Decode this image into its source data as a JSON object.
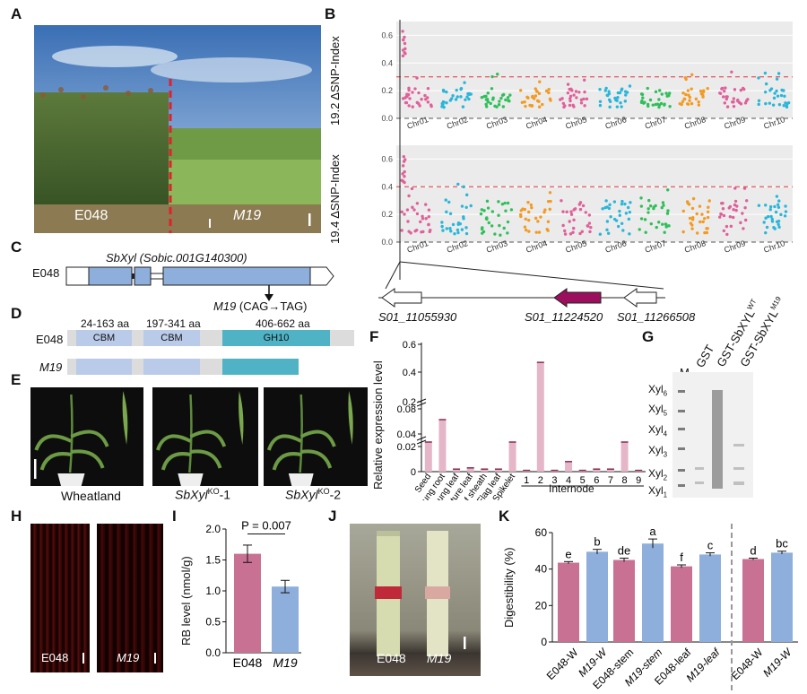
{
  "panels": {
    "A": "A",
    "B": "B",
    "C": "C",
    "D": "D",
    "E": "E",
    "F": "F",
    "G": "G",
    "H": "H",
    "I": "I",
    "J": "J",
    "K": "K"
  },
  "panel_a": {
    "left_label": "E048",
    "right_label": "M19"
  },
  "panel_b": {
    "top_ylabel": "19.2 ΔSNP-Index",
    "bottom_ylabel": "19.4 ΔSNP-Index",
    "yticks": [
      "0.0",
      "0.2",
      "0.4",
      "0.6"
    ],
    "chromosomes": [
      "Chr01",
      "Chr02",
      "Chr03",
      "Chr04",
      "Chr05",
      "Chr06",
      "Chr07",
      "Chr08",
      "Chr09",
      "Chr10"
    ],
    "gene_left": "S01_11055930",
    "gene_mid": "S01_11224520",
    "gene_right": "S01_11266508"
  },
  "panel_c": {
    "gene_name": "SbXyl",
    "gene_id": "(Sobic.001G140300)",
    "line": "E048",
    "mutant": "M19",
    "mutation": "(CAG→TAG)"
  },
  "panel_d": {
    "line": "E048",
    "mutant": "M19",
    "domains": [
      {
        "range": "24-163 aa",
        "name": "CBM"
      },
      {
        "range": "197-341 aa",
        "name": "CBM"
      },
      {
        "range": "406-662 aa",
        "name": "GH10"
      }
    ]
  },
  "panel_e": {
    "labels": [
      {
        "text": "Wheatland",
        "gene": "",
        "sup": "",
        "suffix": ""
      },
      {
        "text": "",
        "gene": "SbXyl",
        "sup": "KO",
        "suffix": "-1"
      },
      {
        "text": "",
        "gene": "SbXyl",
        "sup": "KO",
        "suffix": "-2"
      }
    ]
  },
  "panel_f": {
    "ylabel": "Relative expression level",
    "xlabel": "Internode",
    "yticks": [
      "0",
      "0.02",
      "0.04",
      "0.08",
      "0.2",
      "0.4",
      "0.6"
    ],
    "categories": [
      "Seed",
      "Young root",
      "Young leaf",
      "Mature leaf",
      "Leaf sheath",
      "Flag leaf",
      "Spikelet",
      "1",
      "2",
      "3",
      "4",
      "5",
      "6",
      "7",
      "8",
      "9"
    ]
  },
  "panel_g": {
    "lanes": [
      "M",
      "GST",
      "GST-SbXYL",
      "GST-SbXYL"
    ],
    "lane_sups": [
      "",
      "",
      "WT",
      "M19"
    ],
    "bands": [
      {
        "base": "Xyl",
        "sub": "6"
      },
      {
        "base": "Xyl",
        "sub": "5"
      },
      {
        "base": "Xyl",
        "sub": "4"
      },
      {
        "base": "Xyl",
        "sub": "3"
      },
      {
        "base": "Xyl",
        "sub": "2"
      },
      {
        "base": "Xyl",
        "sub": "1"
      }
    ]
  },
  "panel_h": {
    "left_label": "E048",
    "right_label": "M19"
  },
  "panel_i": {
    "ylabel": "RB level (nmol/g)",
    "pvalue": "P = 0.007",
    "categories": [
      "E048",
      "M19"
    ],
    "yticks": [
      "0.0",
      "0.5",
      "1.0",
      "1.5",
      "2.0"
    ]
  },
  "panel_j": {
    "left_label": "E048",
    "right_label": "M19"
  },
  "panel_k": {
    "ylabel": "Digestibility (%)",
    "yticks": [
      "0",
      "20",
      "40",
      "60"
    ],
    "categories": [
      "E048-W",
      "M19-W",
      "E048-stem",
      "M19-stem",
      "E048-leaf",
      "M19-leaf",
      "E048-W",
      "M19-W"
    ],
    "letters": [
      "e",
      "b",
      "de",
      "a",
      "f",
      "c",
      "d",
      "bc"
    ]
  },
  "colors": {
    "pink": "#c97192",
    "blue": "#8eaedb",
    "teal": "#4fb3c5",
    "dred": "#d62d2d",
    "magenta": "#9c0f5c"
  },
  "chart_data": [
    {
      "type": "bar",
      "title": "",
      "ylabel": "Relative expression level",
      "xlabel": "Internode",
      "categories": [
        "Seed",
        "Young root",
        "Young leaf",
        "Mature leaf",
        "Leaf sheath",
        "Flag leaf",
        "Spikelet",
        "1",
        "2",
        "3",
        "4",
        "5",
        "6",
        "7",
        "8",
        "9"
      ],
      "values": [
        0.038,
        0.065,
        0.002,
        0.003,
        0.002,
        0.002,
        0.03,
        0.001,
        0.47,
        0.001,
        0.008,
        0.001,
        0.002,
        0.002,
        0.03,
        0.001
      ]
    },
    {
      "type": "bar",
      "title": "",
      "ylabel": "RB level (nmol/g)",
      "categories": [
        "E048",
        "M19"
      ],
      "values": [
        1.6,
        1.07
      ],
      "ylim": [
        0,
        2.0
      ]
    },
    {
      "type": "bar",
      "title": "",
      "ylabel": "Digestibility (%)",
      "categories": [
        "E048-W",
        "M19-W",
        "E048-stem",
        "M19-stem",
        "E048-leaf",
        "M19-leaf",
        "E048-W",
        "M19-W"
      ],
      "values": [
        43.5,
        49.5,
        45,
        54,
        41.5,
        48,
        45.5,
        49
      ],
      "ylim": [
        0,
        60
      ]
    }
  ]
}
